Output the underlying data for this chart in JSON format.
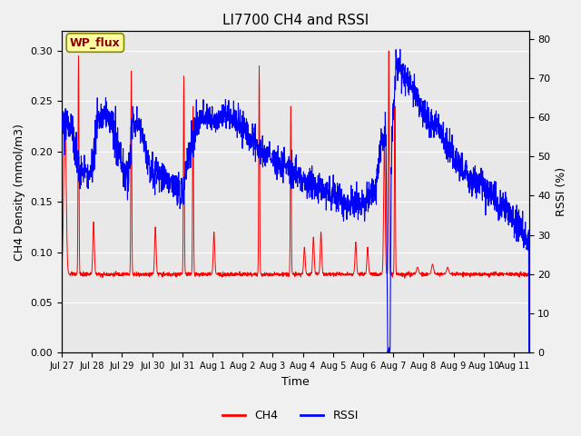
{
  "title": "LI7700 CH4 and RSSI",
  "xlabel": "Time",
  "ylabel_left": "CH4 Density (mmol/m3)",
  "ylabel_right": "RSSI (%)",
  "xlim_days": [
    0,
    15.5
  ],
  "ylim_left": [
    0.0,
    0.32
  ],
  "ylim_right": [
    0,
    82
  ],
  "x_tick_labels": [
    "Jul 27",
    "Jul 28",
    "Jul 29",
    "Jul 30",
    "Jul 31",
    "Aug 1",
    "Aug 2",
    "Aug 3",
    "Aug 4",
    "Aug 5",
    "Aug 6",
    "Aug 7",
    "Aug 8",
    "Aug 9",
    "Aug 10",
    "Aug 11"
  ],
  "x_tick_positions": [
    0,
    1,
    2,
    3,
    4,
    5,
    6,
    7,
    8,
    9,
    10,
    11,
    12,
    13,
    14,
    15
  ],
  "annotation_text": "WP_flux",
  "ch4_color": "#FF0000",
  "rssi_color": "#0000FF",
  "fig_bg_color": "#F0F0F0",
  "plot_bg_color": "#E8E8E8",
  "grid_color": "#FFFFFF",
  "yticks_left": [
    0.0,
    0.05,
    0.1,
    0.15,
    0.2,
    0.25,
    0.3
  ],
  "yticks_right": [
    0,
    10,
    20,
    30,
    40,
    50,
    60,
    70,
    80
  ],
  "legend_labels": [
    "CH4",
    "RSSI"
  ],
  "title_fontsize": 11,
  "label_fontsize": 9,
  "tick_fontsize": 8,
  "xtick_fontsize": 7
}
